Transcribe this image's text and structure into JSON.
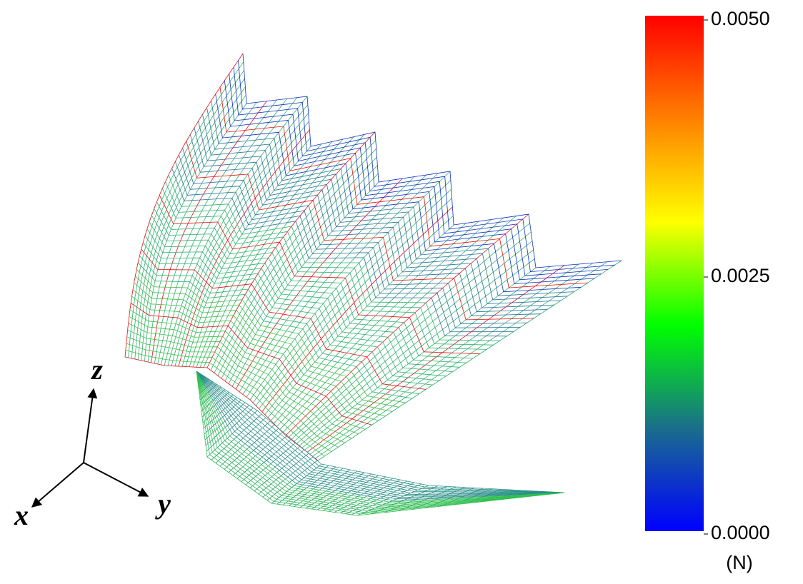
{
  "colorbar": {
    "range": [
      0,
      0.005
    ],
    "ticks": [
      {
        "value": 0.005,
        "label": "0.0050"
      },
      {
        "value": 0.0025,
        "label": "0.0025"
      },
      {
        "value": 0,
        "label": "0.0000"
      }
    ],
    "unit": "(N)",
    "colors": [
      "#0000ff",
      "#1a6e8c",
      "#00ff00",
      "#ffff00",
      "#ff8000",
      "#ff0000"
    ]
  },
  "axes": {
    "x": "x",
    "y": "y",
    "z": "z"
  }
}
